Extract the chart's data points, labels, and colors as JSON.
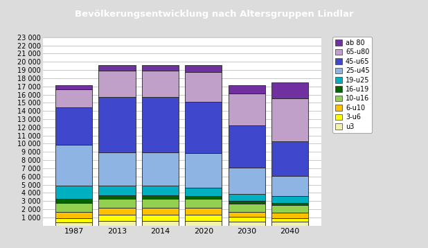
{
  "title": "Bevölkerungsentwicklung nach Altersgruppen Lindlar",
  "title_bg": "#4472C4",
  "title_color": "white",
  "years": [
    "1987",
    "2013",
    "2014",
    "2020",
    "2030",
    "2040"
  ],
  "categories": [
    "u3",
    "3-u6",
    "6-u10",
    "10-u16",
    "16-u19",
    "19-u25",
    "25-u45",
    "45-u65",
    "65-u80",
    "ab 80"
  ],
  "colors": [
    "#F2F2AA",
    "#FFFF00",
    "#FFC000",
    "#92D050",
    "#006400",
    "#00B0C0",
    "#8DB4E2",
    "#3F48CC",
    "#C0A0C8",
    "#7030A0"
  ],
  "data": {
    "u3": [
      400,
      600,
      600,
      600,
      500,
      450
    ],
    "3-u6": [
      500,
      700,
      700,
      700,
      550,
      500
    ],
    "6-u10": [
      800,
      900,
      900,
      850,
      650,
      650
    ],
    "10-u16": [
      1100,
      1100,
      1100,
      1100,
      950,
      900
    ],
    "16-u19": [
      500,
      400,
      400,
      350,
      350,
      300
    ],
    "19-u25": [
      1600,
      1200,
      1200,
      1050,
      850,
      800
    ],
    "25-u45": [
      5000,
      4000,
      4000,
      4200,
      3200,
      2500
    ],
    "45-u65": [
      4500,
      6800,
      6800,
      6300,
      5200,
      4200
    ],
    "65-u80": [
      2200,
      3200,
      3200,
      3600,
      3900,
      5200
    ],
    "ab 80": [
      500,
      700,
      700,
      850,
      1000,
      2000
    ]
  },
  "ylim": [
    0,
    23000
  ],
  "yticks": [
    1000,
    2000,
    3000,
    4000,
    5000,
    6000,
    7000,
    8000,
    9000,
    10000,
    11000,
    12000,
    13000,
    14000,
    15000,
    16000,
    17000,
    18000,
    19000,
    20000,
    21000,
    22000,
    23000
  ],
  "bar_width": 0.85,
  "outer_bg": "#DCDCDC",
  "plot_bg": "#FFFFFF",
  "grid_color": "#C8C8C8"
}
